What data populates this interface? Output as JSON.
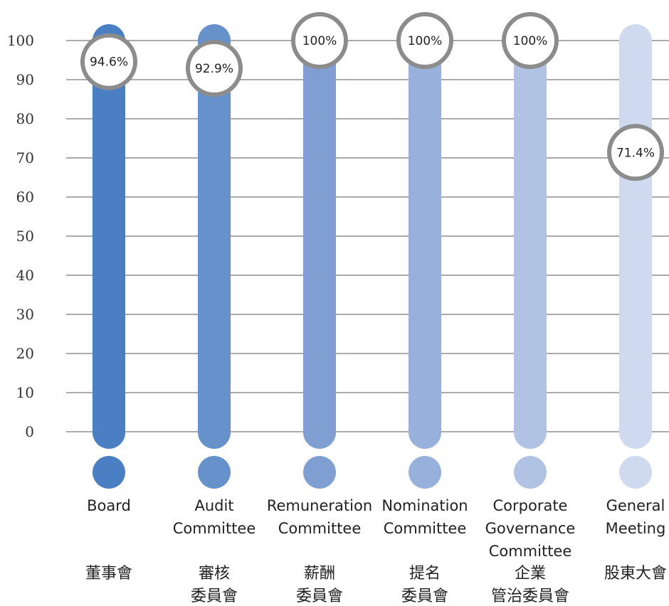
{
  "chart_data": {
    "type": "bar",
    "title": "",
    "xlabel": "",
    "ylabel": "",
    "ylim": [
      0,
      100
    ],
    "yticks": [
      0,
      10,
      20,
      30,
      40,
      50,
      60,
      70,
      80,
      90,
      100
    ],
    "grid": true,
    "categories": [
      {
        "en": [
          "Board"
        ],
        "zh": [
          "董事會"
        ]
      },
      {
        "en": [
          "Audit",
          "Committee"
        ],
        "zh": [
          "審核",
          "委員會"
        ]
      },
      {
        "en": [
          "Remuneration",
          "Committee"
        ],
        "zh": [
          "薪酬",
          "委員會"
        ]
      },
      {
        "en": [
          "Nomination",
          "Committee"
        ],
        "zh": [
          "提名",
          "委員會"
        ]
      },
      {
        "en": [
          "Corporate",
          "Governance",
          "Committee"
        ],
        "zh": [
          "企業",
          "管治委員會"
        ]
      },
      {
        "en": [
          "General",
          "Meeting"
        ],
        "zh": [
          "股東大會"
        ]
      }
    ],
    "values": [
      94.6,
      92.9,
      100,
      100,
      100,
      71.4
    ],
    "data_labels": [
      "94.6%",
      "92.9%",
      "100%",
      "100%",
      "100%",
      "71.4%"
    ],
    "colors": [
      "#4a7fc3",
      "#6691cb",
      "#7f9fd2",
      "#97b1dc",
      "#b0c3e5",
      "#cfdaf0"
    ],
    "marker_ring_color": "#8c8c8c",
    "grid_color": "#555555"
  }
}
